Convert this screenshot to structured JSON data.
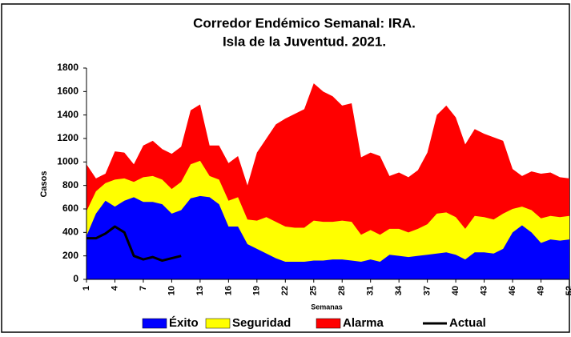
{
  "chart_data": {
    "type": "area",
    "title": "Corredor Endémico Semanal:  IRA.",
    "subtitle": "Isla de la Juventud. 2021.",
    "x_label": "Semanas",
    "y_label": "Casos",
    "x": [
      1,
      2,
      3,
      4,
      5,
      6,
      7,
      8,
      9,
      10,
      11,
      12,
      13,
      14,
      15,
      16,
      17,
      18,
      19,
      20,
      21,
      22,
      23,
      24,
      25,
      26,
      27,
      28,
      29,
      30,
      31,
      32,
      33,
      34,
      35,
      36,
      37,
      38,
      39,
      40,
      41,
      42,
      43,
      44,
      45,
      46,
      47,
      48,
      49,
      50,
      51,
      52
    ],
    "xlim": [
      1,
      52
    ],
    "xticks": [
      1,
      4,
      7,
      10,
      13,
      16,
      19,
      22,
      25,
      28,
      31,
      34,
      37,
      40,
      43,
      46,
      49,
      52
    ],
    "ylim": [
      0,
      1800
    ],
    "yticks": [
      0,
      200,
      400,
      600,
      800,
      1000,
      1200,
      1400,
      1600,
      1800
    ],
    "legend": "bottom",
    "series": [
      {
        "name": "Éxito",
        "color": "#0000ff",
        "kind": "area",
        "values": [
          370,
          560,
          670,
          620,
          670,
          700,
          660,
          660,
          640,
          560,
          590,
          690,
          710,
          700,
          640,
          450,
          450,
          300,
          260,
          220,
          180,
          150,
          150,
          150,
          160,
          160,
          170,
          170,
          160,
          150,
          170,
          150,
          210,
          200,
          190,
          200,
          210,
          220,
          230,
          210,
          170,
          230,
          230,
          220,
          260,
          400,
          460,
          400,
          310,
          340,
          330,
          340
        ]
      },
      {
        "name": "Seguridad",
        "color": "#ffff00",
        "kind": "area",
        "values": [
          580,
          750,
          820,
          850,
          860,
          830,
          870,
          880,
          850,
          770,
          830,
          980,
          1010,
          880,
          850,
          670,
          700,
          510,
          500,
          530,
          490,
          450,
          440,
          440,
          500,
          490,
          490,
          500,
          490,
          380,
          420,
          380,
          430,
          430,
          400,
          430,
          470,
          560,
          570,
          530,
          430,
          540,
          530,
          510,
          560,
          600,
          620,
          590,
          520,
          540,
          530,
          540
        ]
      },
      {
        "name": "Alarma",
        "color": "#ff0000",
        "kind": "area",
        "values": [
          980,
          860,
          900,
          1090,
          1080,
          980,
          1140,
          1180,
          1110,
          1070,
          1130,
          1440,
          1490,
          1140,
          1140,
          990,
          1050,
          800,
          1080,
          1200,
          1320,
          1370,
          1410,
          1450,
          1670,
          1600,
          1560,
          1480,
          1500,
          1040,
          1080,
          1050,
          880,
          910,
          870,
          930,
          1080,
          1400,
          1480,
          1380,
          1150,
          1280,
          1240,
          1210,
          1180,
          940,
          880,
          920,
          900,
          910,
          870,
          860
        ]
      },
      {
        "name": "Actual",
        "color": "#000000",
        "kind": "line",
        "values": [
          350,
          350,
          390,
          450,
          400,
          200,
          170,
          190,
          160,
          180,
          200,
          null,
          null,
          null,
          null,
          null,
          null,
          null,
          null,
          null,
          null,
          null,
          null,
          null,
          null,
          null,
          null,
          null,
          null,
          null,
          null,
          null,
          null,
          null,
          null,
          null,
          null,
          null,
          null,
          null,
          null,
          null,
          null,
          null,
          null,
          null,
          null,
          null,
          null,
          null,
          null,
          null
        ]
      }
    ]
  }
}
